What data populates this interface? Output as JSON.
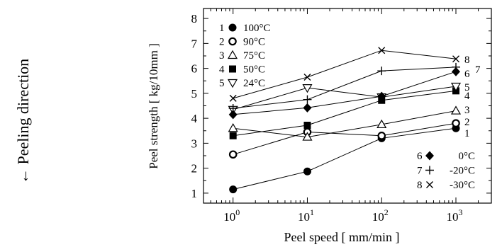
{
  "side_label": {
    "text": "← Peeling direction"
  },
  "chart_data": {
    "type": "line",
    "xscale": "log",
    "xlabel": "Peel speed [ mm/min ]",
    "ylabel": "Peel strength [ kg/10mm ]",
    "xlim": [
      0.4,
      3000
    ],
    "ylim": [
      0.6,
      8.4
    ],
    "x_ticks": [
      {
        "value": 1,
        "base": "10",
        "exp": "0"
      },
      {
        "value": 10,
        "base": "10",
        "exp": "1"
      },
      {
        "value": 100,
        "base": "10",
        "exp": "2"
      },
      {
        "value": 1000,
        "base": "10",
        "exp": "3"
      }
    ],
    "y_ticks": [
      1,
      2,
      3,
      4,
      5,
      6,
      7,
      8
    ],
    "x": [
      1,
      10,
      100,
      1000
    ],
    "series": [
      {
        "name": "100°C",
        "number": "1",
        "marker": "filled-circle",
        "values": [
          1.15,
          1.87,
          3.2,
          3.6
        ]
      },
      {
        "name": "90°C",
        "number": "2",
        "marker": "open-circle",
        "values": [
          2.55,
          3.45,
          3.3,
          3.8
        ]
      },
      {
        "name": "75°C",
        "number": "3",
        "marker": "open-triangle",
        "values": [
          3.6,
          3.25,
          3.75,
          4.3
        ]
      },
      {
        "name": "50°C",
        "number": "4",
        "marker": "filled-square",
        "values": [
          3.3,
          3.72,
          4.72,
          5.1
        ]
      },
      {
        "name": "24°C",
        "number": "5",
        "marker": "open-triangle-down",
        "values": [
          4.35,
          5.22,
          4.85,
          5.28
        ]
      },
      {
        "name": "0°C",
        "number": "6",
        "marker": "filled-diamond",
        "values": [
          4.15,
          4.42,
          4.88,
          5.87
        ]
      },
      {
        "name": "-20°C",
        "number": "7",
        "marker": "plus",
        "values": [
          4.4,
          4.75,
          5.9,
          6.05
        ]
      },
      {
        "name": "-30°C",
        "number": "8",
        "marker": "cross",
        "values": [
          4.8,
          5.65,
          6.72,
          6.38
        ]
      }
    ],
    "line_end_labels": [
      {
        "text": "8",
        "series": "8"
      },
      {
        "text": "6",
        "series": "6"
      },
      {
        "text": "7",
        "series": "7"
      },
      {
        "text": "5",
        "series": "5"
      },
      {
        "text": "4",
        "series": "4"
      },
      {
        "text": "3",
        "series": "3"
      },
      {
        "text": "2",
        "series": "2"
      },
      {
        "text": "1",
        "series": "1"
      }
    ],
    "legend_top_left": [
      "1",
      "2",
      "3",
      "4",
      "5"
    ],
    "legend_bottom_right": [
      "6",
      "7",
      "8"
    ],
    "grid": false
  }
}
